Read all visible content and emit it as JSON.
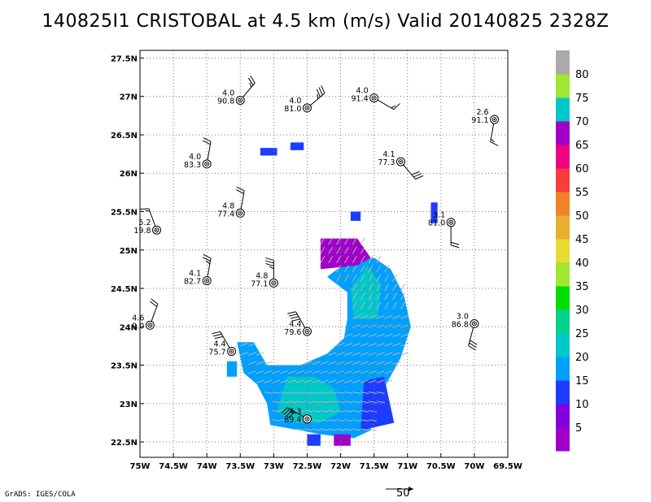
{
  "title": "140825I1 CRISTOBAL at 4.5 km (m/s) Valid 20140825 2328Z",
  "credit": "GrADS: IGES/COLA",
  "reference_vector": {
    "value": "50"
  },
  "colorbar": {
    "levels": [
      "5",
      "10",
      "15",
      "20",
      "25",
      "30",
      "35",
      "40",
      "45",
      "50",
      "55",
      "60",
      "65",
      "70",
      "75",
      "80"
    ],
    "colors": [
      "#a000c8",
      "#8200dc",
      "#1e3cff",
      "#00a0ff",
      "#00c8c8",
      "#00d28c",
      "#00dc00",
      "#a0e632",
      "#e6dc32",
      "#e6af2d",
      "#f08228",
      "#fa3c3c",
      "#f00082",
      "#a000c8",
      "#00c8c8",
      "#a0e632",
      "#aaaaaa"
    ]
  },
  "chart_data": {
    "type": "scatter",
    "title": "140825I1 CRISTOBAL at 4.5 km (m/s) Valid 20140825 2328Z",
    "xlabel": "",
    "ylabel": "",
    "xlim": [
      -75,
      -69.5
    ],
    "ylim": [
      22.3,
      27.6
    ],
    "grid": true,
    "x_tick_labels": [
      "75W",
      "74.5W",
      "74W",
      "73.5W",
      "73W",
      "72.5W",
      "72W",
      "71.5W",
      "71W",
      "70.5W",
      "70W",
      "69.5W"
    ],
    "y_tick_labels": [
      "22.5N",
      "23N",
      "23.5N",
      "24N",
      "24.5N",
      "25N",
      "25.5N",
      "26N",
      "26.5N",
      "27N",
      "27.5N"
    ],
    "stations": [
      {
        "lon": -73.5,
        "lat": 26.95,
        "top": "4.0",
        "bottom": "90.8",
        "barb_dir": 40,
        "barbs": [
          1,
          1,
          0.5
        ]
      },
      {
        "lon": -72.5,
        "lat": 26.85,
        "top": "4.0",
        "bottom": "81.0",
        "barb_dir": 50,
        "barbs": [
          1,
          1,
          1,
          0.5
        ]
      },
      {
        "lon": -71.5,
        "lat": 26.98,
        "top": "4.0",
        "bottom": "91.4",
        "barb_dir": 120,
        "barbs": [
          1,
          0.5
        ]
      },
      {
        "lon": -69.7,
        "lat": 26.7,
        "top": "2.6",
        "bottom": "91.1",
        "barb_dir": 190,
        "barbs": [
          1,
          0.5
        ]
      },
      {
        "lon": -74.0,
        "lat": 26.12,
        "top": "4.0",
        "bottom": "83.3",
        "barb_dir": 10,
        "barbs": [
          1,
          1
        ]
      },
      {
        "lon": -71.1,
        "lat": 26.15,
        "top": "4.1",
        "bottom": "77.3",
        "barb_dir": 140,
        "barbs": [
          1,
          1,
          1
        ]
      },
      {
        "lon": -73.5,
        "lat": 25.48,
        "top": "4.8",
        "bottom": "77.4",
        "barb_dir": 10,
        "barbs": [
          1,
          1
        ]
      },
      {
        "lon": -74.75,
        "lat": 25.26,
        "top": "5.2",
        "bottom": "19.8",
        "barb_dir": 340,
        "barbs": [
          1,
          0.5
        ]
      },
      {
        "lon": -70.35,
        "lat": 25.36,
        "top": "3.1",
        "bottom": "81.0",
        "barb_dir": 180,
        "barbs": [
          1,
          1
        ]
      },
      {
        "lon": -74.0,
        "lat": 24.6,
        "top": "4.1",
        "bottom": "82.7",
        "barb_dir": 10,
        "barbs": [
          1,
          1,
          0.5
        ]
      },
      {
        "lon": -73.0,
        "lat": 24.57,
        "top": "4.8",
        "bottom": "77.1",
        "barb_dir": 0,
        "barbs": [
          1,
          1,
          1,
          0.5
        ]
      },
      {
        "lon": -74.85,
        "lat": 24.02,
        "top": "4.6",
        "bottom": "9.0",
        "barb_dir": 20,
        "barbs": [
          1,
          1
        ]
      },
      {
        "lon": -72.5,
        "lat": 23.94,
        "top": "4.4",
        "bottom": "79.6",
        "barb_dir": 330,
        "barbs": [
          1,
          1,
          1,
          1
        ]
      },
      {
        "lon": -70.0,
        "lat": 24.04,
        "top": "3.0",
        "bottom": "86.8",
        "barb_dir": 195,
        "barbs": [
          1,
          1,
          1
        ]
      },
      {
        "lon": -73.63,
        "lat": 23.68,
        "top": "4.4",
        "bottom": "75.7",
        "barb_dir": 330,
        "barbs": [
          1,
          1,
          1
        ]
      },
      {
        "lon": -72.5,
        "lat": 22.8,
        "top": "4.3",
        "bottom": "89.4",
        "barb_dir": 300,
        "barbs": [
          1,
          1,
          1,
          1
        ]
      }
    ],
    "wind_speed_polygons": [
      {
        "speed": 18,
        "points": [
          [
            -73.55,
            23.8
          ],
          [
            -73.3,
            23.8
          ],
          [
            -73.1,
            23.5
          ],
          [
            -72.6,
            23.5
          ],
          [
            -72.2,
            23.65
          ],
          [
            -71.95,
            23.85
          ],
          [
            -71.9,
            24.1
          ],
          [
            -71.9,
            24.45
          ],
          [
            -72.2,
            24.65
          ],
          [
            -71.9,
            24.85
          ],
          [
            -71.5,
            24.9
          ],
          [
            -71.25,
            24.75
          ],
          [
            -71.05,
            24.4
          ],
          [
            -70.95,
            24.0
          ],
          [
            -71.1,
            23.6
          ],
          [
            -71.35,
            23.2
          ],
          [
            -71.5,
            22.9
          ],
          [
            -71.55,
            22.65
          ],
          [
            -71.8,
            22.55
          ],
          [
            -72.3,
            22.6
          ],
          [
            -72.6,
            22.65
          ],
          [
            -73.05,
            22.72
          ],
          [
            -73.1,
            23.0
          ],
          [
            -73.25,
            23.25
          ],
          [
            -73.45,
            23.4
          ]
        ]
      },
      {
        "speed": 22,
        "points": [
          [
            -72.8,
            23.35
          ],
          [
            -72.4,
            23.35
          ],
          [
            -72.1,
            23.2
          ],
          [
            -72.0,
            22.9
          ],
          [
            -72.3,
            22.75
          ],
          [
            -72.7,
            22.75
          ],
          [
            -72.95,
            22.9
          ]
        ]
      },
      {
        "speed": 22,
        "points": [
          [
            -71.85,
            24.5
          ],
          [
            -71.6,
            24.8
          ],
          [
            -71.4,
            24.55
          ],
          [
            -71.45,
            24.1
          ],
          [
            -71.8,
            24.1
          ]
        ]
      },
      {
        "speed": 12,
        "points": [
          [
            -71.65,
            23.3
          ],
          [
            -71.35,
            23.35
          ],
          [
            -71.2,
            22.75
          ],
          [
            -71.7,
            22.65
          ]
        ]
      },
      {
        "speed": 3,
        "points": [
          [
            -72.3,
            25.15
          ],
          [
            -71.75,
            25.15
          ],
          [
            -71.55,
            24.9
          ],
          [
            -71.75,
            24.8
          ],
          [
            -72.3,
            24.75
          ]
        ]
      },
      {
        "speed": 12,
        "points": [
          [
            -72.75,
            26.4
          ],
          [
            -72.55,
            26.4
          ],
          [
            -72.55,
            26.3
          ],
          [
            -72.75,
            26.3
          ]
        ]
      },
      {
        "speed": 12,
        "points": [
          [
            -73.2,
            26.33
          ],
          [
            -72.95,
            26.33
          ],
          [
            -72.95,
            26.23
          ],
          [
            -73.2,
            26.23
          ]
        ]
      },
      {
        "speed": 12,
        "points": [
          [
            -71.85,
            25.5
          ],
          [
            -71.7,
            25.5
          ],
          [
            -71.7,
            25.38
          ],
          [
            -71.85,
            25.38
          ]
        ]
      },
      {
        "speed": 12,
        "points": [
          [
            -70.65,
            25.62
          ],
          [
            -70.55,
            25.62
          ],
          [
            -70.55,
            25.35
          ],
          [
            -70.65,
            25.35
          ]
        ]
      },
      {
        "speed": 3,
        "points": [
          [
            -72.1,
            22.6
          ],
          [
            -71.85,
            22.6
          ],
          [
            -71.85,
            22.45
          ],
          [
            -72.1,
            22.45
          ]
        ]
      },
      {
        "speed": 12,
        "points": [
          [
            -72.5,
            22.6
          ],
          [
            -72.3,
            22.6
          ],
          [
            -72.3,
            22.45
          ],
          [
            -72.5,
            22.45
          ]
        ]
      },
      {
        "speed": 18,
        "points": [
          [
            -73.7,
            23.55
          ],
          [
            -73.55,
            23.55
          ],
          [
            -73.55,
            23.35
          ],
          [
            -73.7,
            23.35
          ]
        ]
      }
    ]
  }
}
